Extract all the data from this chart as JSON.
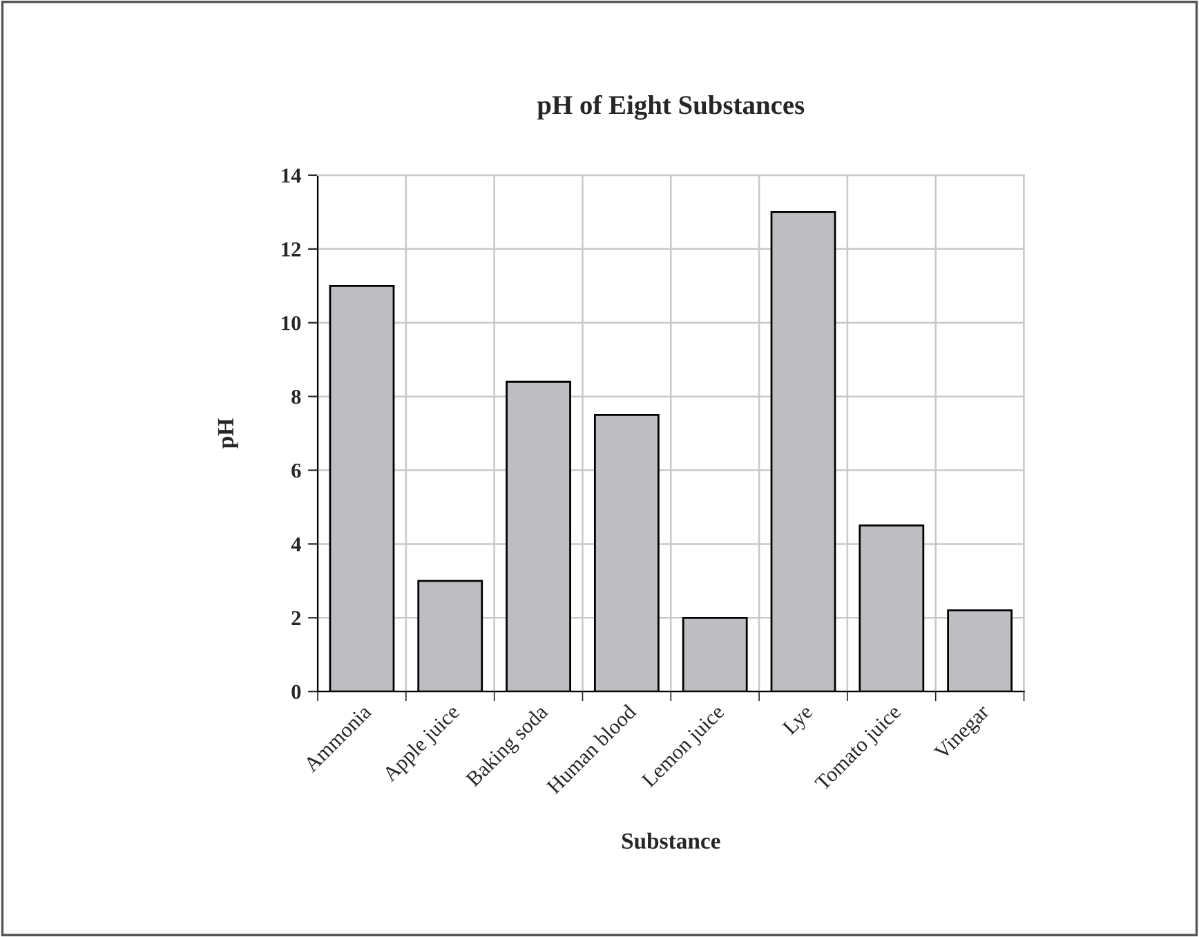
{
  "chart_data": {
    "type": "bar",
    "title": "pH of Eight Substances",
    "xlabel": "Substance",
    "ylabel": "pH",
    "categories": [
      "Ammonia",
      "Apple juice",
      "Baking soda",
      "Human blood",
      "Lemon juice",
      "Lye",
      "Tomato juice",
      "Vinegar"
    ],
    "values": [
      11,
      3,
      8.4,
      7.5,
      2,
      13,
      4.5,
      2.2
    ],
    "color": "#bebec2",
    "ylim": [
      0,
      14
    ],
    "yticks": [
      0,
      2,
      4,
      6,
      8,
      10,
      12,
      14
    ],
    "grid": true
  }
}
